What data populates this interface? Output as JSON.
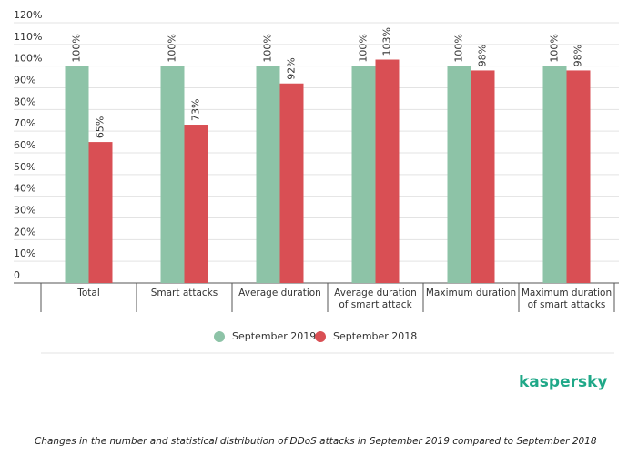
{
  "chart_data": {
    "type": "bar",
    "categories": [
      "Total",
      "Smart attacks",
      "Average duration",
      "Average duration of smart attack",
      "Maximum duration",
      "Maximum duration of smart attacks"
    ],
    "series": [
      {
        "name": "September 2019",
        "color": "#8dc3a7",
        "values": [
          100,
          100,
          100,
          100,
          100,
          100
        ],
        "value_labels": [
          "100%",
          "100%",
          "100%",
          "100%",
          "100%",
          "100%"
        ]
      },
      {
        "name": "September 2018",
        "color": "#d94f54",
        "values": [
          65,
          73,
          92,
          103,
          98,
          98
        ],
        "value_labels": [
          "65%",
          "73%",
          "92%",
          "103%",
          "98%",
          "98%"
        ]
      }
    ],
    "ylim": [
      0,
      120
    ],
    "yticks": [
      0,
      {
        "value": 10,
        "label": "10%"
      },
      {
        "value": 20,
        "label": "20%"
      },
      {
        "value": 30,
        "label": "30%"
      },
      {
        "value": 40,
        "label": "40%"
      },
      {
        "value": 50,
        "label": "50%"
      },
      {
        "value": 60,
        "label": "60%"
      },
      {
        "value": 70,
        "label": "70%"
      },
      {
        "value": 80,
        "label": "80%"
      },
      {
        "value": 90,
        "label": "90%"
      },
      {
        "value": 100,
        "label": "100%"
      },
      {
        "value": 110,
        "label": "110%"
      },
      {
        "value": 120,
        "label": "120%"
      }
    ],
    "grid": true,
    "legend": "bottom",
    "brand": "kaspersky",
    "caption": "Changes in the number and statistical distribution of DDoS attacks in September 2019 compared to September 2018"
  }
}
